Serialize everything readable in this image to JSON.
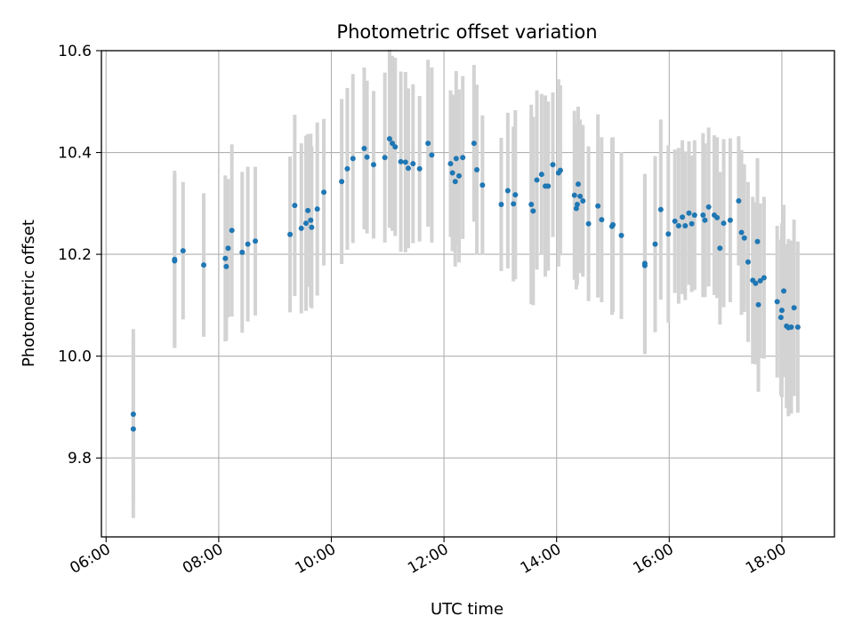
{
  "chart_data": {
    "type": "scatter",
    "title": "Photometric offset variation",
    "xlabel": "UTC time",
    "ylabel": "Photometric offset",
    "x_ticks": [
      "06:00",
      "08:00",
      "10:00",
      "12:00",
      "14:00",
      "16:00",
      "18:00"
    ],
    "y_ticks": [
      "9.8",
      "10.0",
      "10.2",
      "10.4",
      "10.6"
    ],
    "xlim": [
      "05:55",
      "18:56"
    ],
    "ylim": [
      9.645,
      10.6
    ],
    "grid": true,
    "colors": {
      "marker": "#1f77b4",
      "errorbar": "#d3d3d3",
      "grid": "#b0b0b0"
    },
    "series": [
      {
        "x": [
          "06:29",
          "06:29",
          "07:13",
          "07:13",
          "07:22",
          "07:44",
          "08:07",
          "08:08",
          "08:10",
          "08:14",
          "08:25",
          "08:31",
          "08:39",
          "09:16",
          "09:21",
          "09:28",
          "09:33",
          "09:35",
          "09:38",
          "09:39",
          "09:45",
          "09:52",
          "10:11",
          "10:17",
          "10:23",
          "10:35",
          "10:38",
          "10:45",
          "10:57",
          "11:02",
          "11:05",
          "11:08",
          "11:14",
          "11:19",
          "11:22",
          "11:27",
          "11:34",
          "11:43",
          "11:47",
          "12:07",
          "12:09",
          "12:12",
          "12:13",
          "12:16",
          "12:20",
          "12:32",
          "12:35",
          "12:41",
          "13:01",
          "13:08",
          "13:14",
          "13:16",
          "13:33",
          "13:35",
          "13:39",
          "13:44",
          "13:48",
          "13:51",
          "13:56",
          "14:02",
          "14:04",
          "14:19",
          "14:21",
          "14:22",
          "14:23",
          "14:25",
          "14:28",
          "14:34",
          "14:44",
          "14:48",
          "14:59",
          "15:00",
          "15:09",
          "15:34",
          "15:34",
          "15:45",
          "15:51",
          "15:59",
          "16:06",
          "16:10",
          "16:14",
          "16:17",
          "16:21",
          "16:24",
          "16:27",
          "16:36",
          "16:38",
          "16:42",
          "16:48",
          "16:51",
          "16:54",
          "16:58",
          "17:05",
          "17:14",
          "17:17",
          "17:20",
          "17:24",
          "17:29",
          "17:32",
          "17:34",
          "17:35",
          "17:37",
          "17:41",
          "17:55",
          "17:59",
          "18:00",
          "18:02",
          "18:05",
          "18:07",
          "18:10",
          "18:13",
          "18:17"
        ],
        "y": [
          9.886,
          9.857,
          10.19,
          10.187,
          10.207,
          10.179,
          10.192,
          10.176,
          10.212,
          10.247,
          10.204,
          10.22,
          10.226,
          10.239,
          10.296,
          10.251,
          10.261,
          10.286,
          10.267,
          10.253,
          10.289,
          10.322,
          10.343,
          10.368,
          10.388,
          10.408,
          10.391,
          10.376,
          10.39,
          10.427,
          10.418,
          10.411,
          10.382,
          10.381,
          10.369,
          10.378,
          10.368,
          10.418,
          10.395,
          10.378,
          10.36,
          10.343,
          10.388,
          10.354,
          10.39,
          10.418,
          10.366,
          10.336,
          10.298,
          10.325,
          10.299,
          10.317,
          10.298,
          10.285,
          10.346,
          10.357,
          10.334,
          10.334,
          10.376,
          10.36,
          10.365,
          10.316,
          10.29,
          10.298,
          10.338,
          10.314,
          10.305,
          10.26,
          10.295,
          10.268,
          10.255,
          10.258,
          10.237,
          10.178,
          10.182,
          10.22,
          10.288,
          10.24,
          10.265,
          10.256,
          10.273,
          10.256,
          10.281,
          10.26,
          10.277,
          10.277,
          10.267,
          10.293,
          10.277,
          10.272,
          10.212,
          10.261,
          10.267,
          10.305,
          10.243,
          10.232,
          10.185,
          10.149,
          10.143,
          10.225,
          10.101,
          10.148,
          10.154,
          10.107,
          10.076,
          10.09,
          10.128,
          10.059,
          10.056,
          10.057,
          10.095,
          10.057
        ],
        "yerr": [
          0.167,
          0.175,
          0.174,
          0.17,
          0.135,
          0.141,
          0.163,
          0.145,
          0.136,
          0.169,
          0.158,
          0.152,
          0.146,
          0.153,
          0.178,
          0.167,
          0.172,
          0.15,
          0.17,
          0.159,
          0.17,
          0.144,
          0.162,
          0.159,
          0.166,
          0.159,
          0.15,
          0.145,
          0.167,
          0.175,
          0.172,
          0.175,
          0.177,
          0.177,
          0.157,
          0.156,
          0.143,
          0.164,
          0.172,
          0.144,
          0.154,
          0.167,
          0.172,
          0.17,
          0.16,
          0.154,
          0.167,
          0.137,
          0.131,
          0.153,
          0.152,
          0.166,
          0.196,
          0.185,
          0.176,
          0.158,
          0.178,
          0.166,
          0.142,
          0.184,
          0.167,
          0.166,
          0.159,
          0.158,
          0.152,
          0.151,
          0.149,
          0.152,
          0.18,
          0.162,
          0.174,
          0.172,
          0.164,
          0.174,
          0.176,
          0.173,
          0.177,
          0.174,
          0.141,
          0.153,
          0.151,
          0.146,
          0.141,
          0.134,
          0.147,
          0.161,
          0.151,
          0.156,
          0.157,
          0.158,
          0.15,
          0.165,
          0.161,
          0.127,
          0.162,
          0.145,
          0.157,
          0.164,
          0.159,
          0.164,
          0.171,
          0.152,
          0.159,
          0.149,
          0.153,
          0.171,
          0.169,
          0.161,
          0.174,
          0.17,
          0.173,
          0.168
        ]
      }
    ]
  }
}
